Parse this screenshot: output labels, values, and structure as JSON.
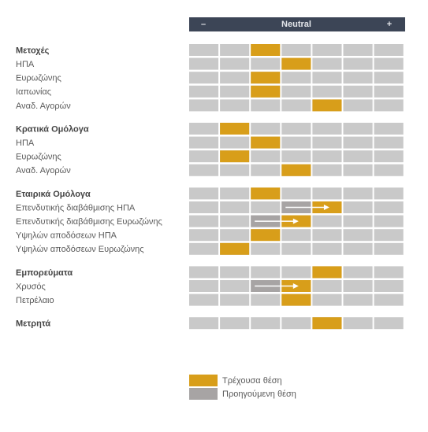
{
  "header": {
    "minus": "–",
    "neutral": "Neutral",
    "plus": "+"
  },
  "groups": [
    {
      "title": "Μετοχές",
      "current": 2,
      "rows": [
        {
          "label": "ΗΠΑ",
          "current": 3
        },
        {
          "label": "Ευρωζώνης",
          "current": 2
        },
        {
          "label": "Ιαπωνίας",
          "current": 2
        },
        {
          "label": "Αναδ. Αγορών",
          "current": 4
        }
      ]
    },
    {
      "title": "Κρατικά Ομόλογα",
      "current": 1,
      "rows": [
        {
          "label": "ΗΠΑ",
          "current": 2
        },
        {
          "label": "Ευρωζώνης",
          "current": 1
        },
        {
          "label": "Αναδ. Αγορών",
          "current": 3
        }
      ]
    },
    {
      "title": "Εταιρικά Ομόλογα",
      "current": 2,
      "rows": [
        {
          "label": "Επενδυτικής διαβάθμισης ΗΠΑ",
          "current": 4,
          "previous": 3
        },
        {
          "label": "Επενδυτικής διαβάθμισης Ευρωζώνης",
          "current": 3,
          "previous": 2
        },
        {
          "label": "Υψηλών αποδόσεων ΗΠΑ",
          "current": 2
        },
        {
          "label": "Υψηλών αποδόσεων Ευρωζώνης",
          "current": 1
        }
      ]
    },
    {
      "title": "Εμπορεύματα",
      "current": 4,
      "rows": [
        {
          "label": "Χρυσός",
          "current": 3,
          "previous": 2
        },
        {
          "label": "Πετρέλαιο",
          "current": 3
        }
      ]
    },
    {
      "title": "Μετρητά",
      "current": 4,
      "rows": []
    }
  ],
  "legend": {
    "current": "Τρέχουσα θέση",
    "previous": "Προηγούμενη θέση"
  }
}
